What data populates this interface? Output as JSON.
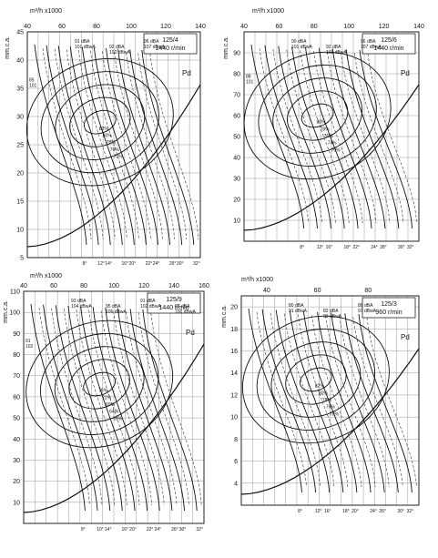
{
  "chart_data": [
    {
      "type": "line",
      "id": "tl",
      "x_unit_label": "m³/h x1000",
      "y_unit_label": "mm.c.a.",
      "model": "125/4",
      "speed": "1440 r/min",
      "pd_label": "Pd",
      "xlim": [
        40,
        140
      ],
      "ylim": [
        5,
        45
      ],
      "x_ticks": [
        "40",
        "60",
        "80",
        "100",
        "120",
        "140"
      ],
      "y_ticks": [
        5,
        10,
        15,
        20,
        25,
        30,
        35,
        40,
        45
      ],
      "efficiency_labels": [
        "82%",
        "80%",
        "78%",
        "76%",
        "70%"
      ],
      "noise_labels": [
        "91 dBA 101 dBwA",
        "92 dBA 102 dBwA",
        "96 dBA 107 dBwA"
      ],
      "side_note": "85 101",
      "angle_labels": [
        "8°",
        "12°",
        "14°",
        "16°",
        "20°",
        "22°",
        "24°",
        "26°",
        "30°",
        "32°"
      ]
    },
    {
      "type": "line",
      "id": "tr",
      "x_unit_label": "m³/h x1000",
      "y_unit_label": "mm.c.a.",
      "model": "125/6",
      "speed": "1440 r/min",
      "pd_label": "Pd",
      "xlim": [
        40,
        140
      ],
      "ylim": [
        0,
        100
      ],
      "x_ticks": [
        "40",
        "60",
        "80",
        "100",
        "120",
        "140"
      ],
      "y_ticks": [
        10,
        20,
        30,
        40,
        50,
        60,
        70,
        80,
        90
      ],
      "efficiency_labels": [
        "80%",
        "78%",
        "76%",
        "74%",
        "70%"
      ],
      "noise_labels": [
        "90 dBA 101 dBwA",
        "92 dBA 103 dBwA",
        "96 dBA 107 dBwA"
      ],
      "side_note": "88 101",
      "angle_labels": [
        "8°",
        "12°",
        "16°",
        "18°",
        "22°",
        "24°",
        "28°",
        "30°",
        "32°"
      ]
    },
    {
      "type": "line",
      "id": "bl",
      "x_unit_label": "m³/h x1000",
      "y_unit_label": "mm.c.a.",
      "model": "125/9",
      "speed": "1440 r/min",
      "pd_label": "Pd",
      "xlim": [
        40,
        160
      ],
      "ylim": [
        0,
        110
      ],
      "x_ticks": [
        "40",
        "60",
        "80",
        "100",
        "120",
        "140",
        "160"
      ],
      "y_ticks": [
        10,
        20,
        30,
        40,
        50,
        60,
        70,
        80,
        90,
        100,
        110
      ],
      "efficiency_labels": [
        "76%",
        "72%",
        "69%",
        "64%",
        "59%"
      ],
      "noise_labels": [
        "93 dBA 104 dBwA",
        "95 dBA 106 dBwA",
        "91 dBA 102 dBwA",
        "87 dBA 100 dBwA"
      ],
      "side_note": "91 102",
      "angle_labels": [
        "8°",
        "10°",
        "14°",
        "16°",
        "20°",
        "22°",
        "24°",
        "26°",
        "30°",
        "32°"
      ]
    },
    {
      "type": "line",
      "id": "br",
      "x_unit_label": "m³/h x1000",
      "y_unit_label": "mm.c.a.",
      "model": "125/3",
      "speed": "960 r/min",
      "pd_label": "Pd",
      "xlim": [
        30,
        100
      ],
      "ylim": [
        2,
        21
      ],
      "x_ticks": [
        "40",
        "60",
        "80"
      ],
      "y_ticks": [
        4,
        6,
        8,
        10,
        12,
        14,
        16,
        18,
        20
      ],
      "efficiency_labels": [
        "82%",
        "80%",
        "78%",
        "76%",
        "70%"
      ],
      "noise_labels": [
        "80 dBA 91 dBwA",
        "82 dBA 93 dBwA",
        "86 dBA 97 dBwA"
      ],
      "side_note": "",
      "angle_labels": [
        "8°",
        "12°",
        "16°",
        "18°",
        "20°",
        "24°",
        "26°",
        "30°",
        "32°"
      ]
    }
  ]
}
